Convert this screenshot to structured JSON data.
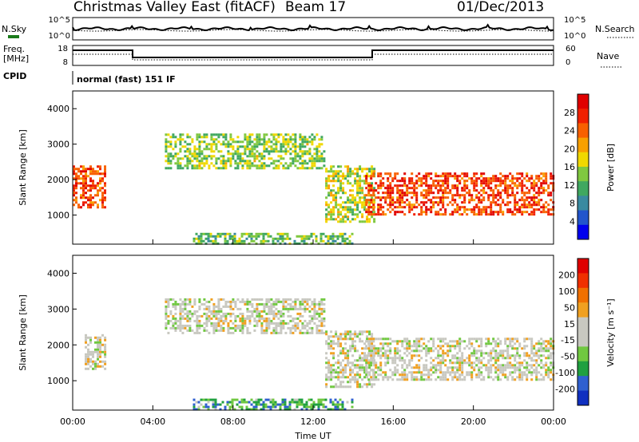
{
  "header": {
    "station": "Christmas Valley East (fitACF)",
    "beam": "Beam 17",
    "date": "01/Dec/2013"
  },
  "noise_panel": {
    "left_label": "N.Sky",
    "right_label": "N.Search",
    "left_ticks": [
      "10^5",
      "10^0"
    ],
    "right_ticks": [
      "10^5",
      "10^0"
    ],
    "left_legend_color": "#1a7a1a"
  },
  "freq_panel": {
    "left_label_1": "Freq.",
    "left_label_2": "[MHz]",
    "right_label": "Nave",
    "left_ticks": [
      "18",
      "8"
    ],
    "right_ticks": [
      "60",
      "0"
    ],
    "cpid_label": "CPID",
    "cpid_text": "normal (fast) 151 IF"
  },
  "chart_data": [
    {
      "type": "heatmap",
      "name": "power",
      "ylabel": "Slant Range [km]",
      "xlabel": "",
      "x_ticks": [
        "00:00",
        "04:00",
        "08:00",
        "12:00",
        "16:00",
        "20:00",
        "00:00"
      ],
      "x_range_hours": [
        0,
        24
      ],
      "y_ticks": [
        1000,
        2000,
        3000,
        4000
      ],
      "y_range_km": [
        180,
        4500
      ],
      "colorbar": {
        "label": "Power [dB]",
        "ticks": [
          "4",
          "8",
          "12",
          "16",
          "20",
          "24",
          "28"
        ],
        "colors": [
          "#0000ee",
          "#2255cc",
          "#3a8aa0",
          "#40a860",
          "#80c840",
          "#f0d800",
          "#f8a000",
          "#f86000",
          "#f02000",
          "#e00000"
        ]
      },
      "echo_regions": [
        {
          "t0": 0.0,
          "t1": 1.6,
          "r0": 1200,
          "r1": 2400,
          "level": 0.85
        },
        {
          "t0": 4.6,
          "t1": 12.6,
          "r0": 2300,
          "r1": 3300,
          "level": 0.45
        },
        {
          "t0": 12.6,
          "t1": 15.0,
          "r0": 800,
          "r1": 2400,
          "level": 0.5
        },
        {
          "t0": 14.6,
          "t1": 24.0,
          "r0": 1000,
          "r1": 2200,
          "level": 0.85
        },
        {
          "t0": 6.0,
          "t1": 14.0,
          "r0": 200,
          "r1": 500,
          "level": 0.4
        }
      ]
    },
    {
      "type": "heatmap",
      "name": "velocity",
      "ylabel": "Slant Range [km]",
      "xlabel": "Time UT",
      "x_ticks": [
        "00:00",
        "04:00",
        "08:00",
        "12:00",
        "16:00",
        "20:00",
        "00:00"
      ],
      "x_range_hours": [
        0,
        24
      ],
      "y_ticks": [
        1000,
        2000,
        3000,
        4000
      ],
      "y_range_km": [
        180,
        4500
      ],
      "colorbar": {
        "label": "Velocity [m s⁻¹]",
        "ticks": [
          "200",
          "100",
          "50",
          "15",
          "-15",
          "-50",
          "-100",
          "-200"
        ],
        "colors": [
          "#1030c0",
          "#3060d0",
          "#20a040",
          "#70c840",
          "#c8c8c0",
          "#c8c8c0",
          "#f0a020",
          "#f07000",
          "#f03000",
          "#e00000"
        ]
      },
      "echo_regions": [
        {
          "t0": 0.6,
          "t1": 1.6,
          "r0": 1300,
          "r1": 2300,
          "level": 0.5
        },
        {
          "t0": 4.6,
          "t1": 12.6,
          "r0": 2300,
          "r1": 3300,
          "level": 0.5
        },
        {
          "t0": 12.6,
          "t1": 15.0,
          "r0": 800,
          "r1": 2400,
          "level": 0.5
        },
        {
          "t0": 14.6,
          "t1": 24.0,
          "r0": 1000,
          "r1": 2200,
          "level": 0.5
        },
        {
          "t0": 6.0,
          "t1": 14.0,
          "r0": 200,
          "r1": 500,
          "level": 0.25
        }
      ]
    }
  ]
}
